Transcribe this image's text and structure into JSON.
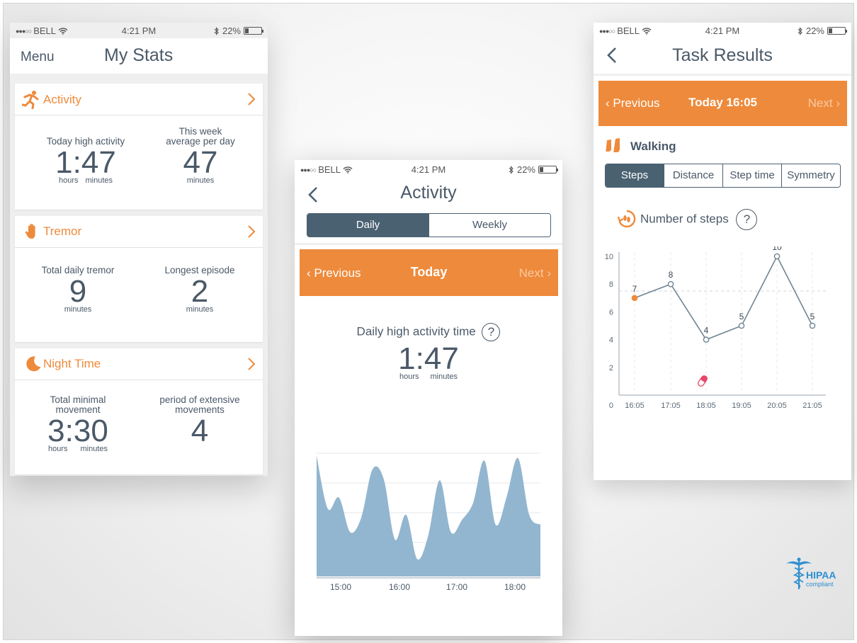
{
  "status": {
    "carrier": "BELL",
    "time": "4:21 PM",
    "battery": "22%"
  },
  "stats": {
    "menu_label": "Menu",
    "title": "My Stats",
    "activity": {
      "label": "Activity",
      "left_caption": "Today high activity",
      "left_value": "1:47",
      "left_unit_1": "hours",
      "left_unit_2": "minutes",
      "right_caption_1": "This week",
      "right_caption_2": "average per day",
      "right_value": "47",
      "right_unit": "minutes"
    },
    "tremor": {
      "label": "Tremor",
      "left_caption": "Total daily tremor",
      "left_value": "9",
      "left_unit": "minutes",
      "right_caption": "Longest episode",
      "right_value": "2",
      "right_unit": "minutes"
    },
    "night": {
      "label": "Night Time",
      "left_caption_1": "Total minimal",
      "left_caption_2": "movement",
      "left_value": "3:30",
      "left_unit_1": "hours",
      "left_unit_2": "minutes",
      "right_caption_1": "period of extensive",
      "right_caption_2": "movements",
      "right_value": "4"
    }
  },
  "activity_screen": {
    "title": "Activity",
    "tabs": [
      "Daily",
      "Weekly"
    ],
    "active_tab": "Daily",
    "prev_label": "Previous",
    "period_title": "Today",
    "next_label": "Next",
    "metric_label": "Daily high activity time",
    "help_label": "?",
    "metric_value": "1:47",
    "unit_hours": "hours",
    "unit_minutes": "minutes",
    "chart_color": "#93b6d0"
  },
  "task_results": {
    "title": "Task Results",
    "prev_label": "Previous",
    "period_title": "Today 16:05",
    "next_label": "Next",
    "task_label": "Walking",
    "tabs": [
      "Steps",
      "Distance",
      "Step time",
      "Symmetry"
    ],
    "active_tab": "Steps",
    "chart_label": "Number of steps",
    "help_label": "?"
  },
  "badge": {
    "line1": "HIPAA",
    "line2": "compliant"
  },
  "colors": {
    "accent": "#ee8a3b",
    "dark": "#4a6172",
    "text": "#4a5968"
  },
  "chart_data": [
    {
      "type": "area",
      "x_ticks": [
        "15:00",
        "16:00",
        "17:00",
        "18:00"
      ],
      "values": [
        0.98,
        0.55,
        0.64,
        0.36,
        0.48,
        0.87,
        0.79,
        0.3,
        0.5,
        0.14,
        0.34,
        0.78,
        0.36,
        0.46,
        0.6,
        0.94,
        0.42,
        0.65,
        0.96,
        0.5,
        0.42
      ],
      "grid": true
    },
    {
      "type": "line",
      "x": [
        "16:05",
        "17:05",
        "18:05",
        "19:05",
        "20:05",
        "21:05"
      ],
      "y": [
        7,
        8,
        4,
        5,
        10,
        5
      ],
      "y_ticks": [
        0,
        2,
        4,
        6,
        8,
        10
      ],
      "ylim": [
        0,
        10
      ],
      "reference_line": 7.5,
      "highlight_index": 0,
      "grid": true
    }
  ]
}
